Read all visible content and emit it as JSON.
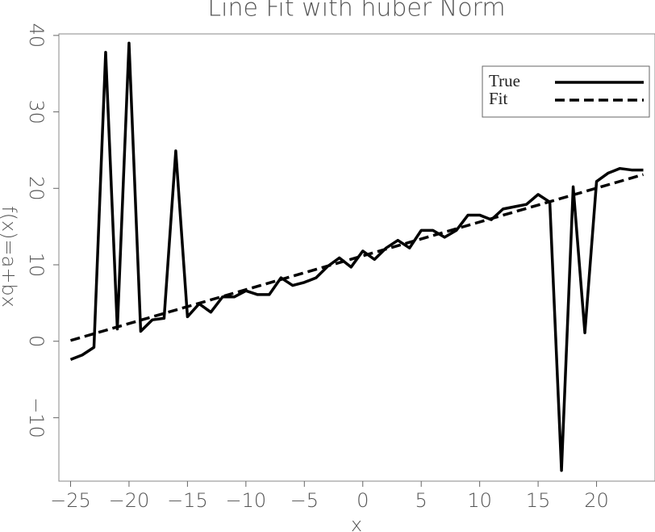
{
  "chart_data": {
    "type": "line",
    "title": "Line Fit with huber Norm",
    "x_label": "x",
    "y_label": "f(x)=a+bx",
    "xlim": [
      -26,
      25
    ],
    "ylim": [
      -18.3,
      40.2
    ],
    "xticks": [
      {
        "value": -25,
        "label": "−25"
      },
      {
        "value": -20,
        "label": "−20"
      },
      {
        "value": -15,
        "label": "−15"
      },
      {
        "value": -10,
        "label": "−10"
      },
      {
        "value": -5,
        "label": "−5"
      },
      0,
      5,
      10,
      15,
      20
    ],
    "yticks": [
      {
        "value": -10,
        "label": "−10"
      },
      0,
      10,
      20,
      30,
      40
    ],
    "legend": "upper right",
    "series": [
      {
        "name": "True",
        "color": "#000000",
        "style": "solid",
        "x": [
          -25,
          -24,
          -23,
          -22,
          -21,
          -20,
          -19,
          -18,
          -17,
          -16,
          -15,
          -14,
          -13,
          -12,
          -11,
          -10,
          -9,
          -8,
          -7,
          -6,
          -5,
          -4,
          -3,
          -2,
          -1,
          0,
          1,
          2,
          3,
          4,
          5,
          6,
          7,
          8,
          9,
          10,
          11,
          12,
          13,
          14,
          15,
          16,
          17,
          18,
          19,
          20,
          21,
          22,
          23,
          24
        ],
        "values": [
          -2.4,
          -1.8,
          -0.8,
          37.8,
          1.6,
          39,
          1.3,
          2.8,
          3.0,
          24.9,
          3.2,
          4.9,
          3.8,
          5.8,
          5.8,
          6.6,
          6.1,
          6.1,
          8.3,
          7.3,
          7.7,
          8.3,
          9.8,
          10.9,
          9.7,
          11.8,
          10.7,
          12.2,
          13.2,
          12.2,
          14.5,
          14.5,
          13.6,
          14.5,
          16.5,
          16.5,
          15.9,
          17.3,
          17.6,
          17.9,
          19.2,
          18.2,
          -16.9,
          20.2,
          1.1,
          20.9,
          22,
          22.6,
          22.4,
          22.4
        ]
      },
      {
        "name": "Fit",
        "color": "#000000",
        "style": "dashed",
        "x": [
          -25,
          24
        ],
        "values": [
          0.1,
          21.8
        ]
      }
    ]
  }
}
